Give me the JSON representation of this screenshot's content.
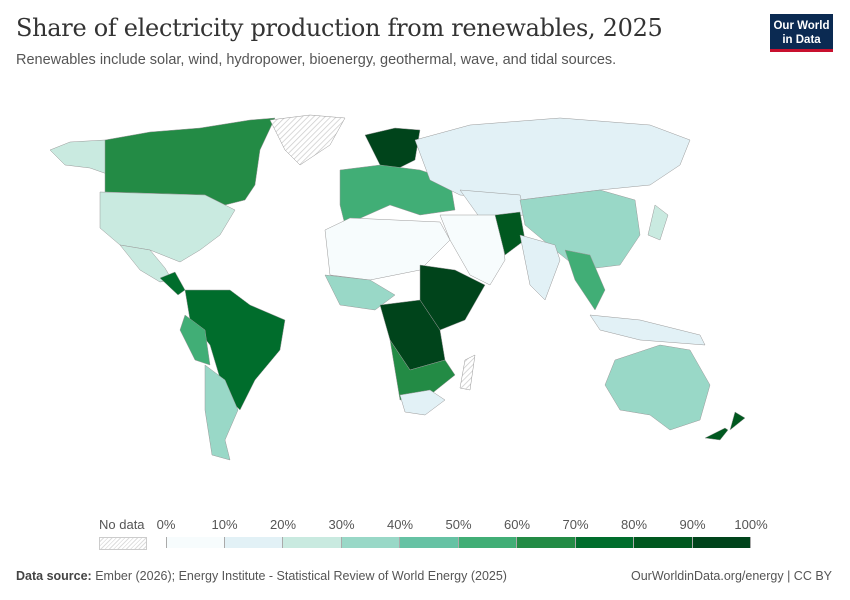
{
  "header": {
    "title": "Share of electricity production from renewables, 2025",
    "subtitle": "Renewables include solar, wind, hydropower, bioenergy, geothermal, wave, and tidal sources."
  },
  "logo": {
    "line1": "Our World",
    "line2": "in Data"
  },
  "legend": {
    "no_data_label": "No data",
    "ticks": [
      "0%",
      "10%",
      "20%",
      "30%",
      "40%",
      "50%",
      "60%",
      "70%",
      "80%",
      "90%",
      "100%"
    ],
    "colors": [
      "#f7fcfd",
      "#e2f1f6",
      "#c9eae0",
      "#99d8c7",
      "#66c2a4",
      "#41ae76",
      "#238b45",
      "#006d2c",
      "#00581f",
      "#00441b"
    ]
  },
  "footer": {
    "source_label": "Data source:",
    "source": "Ember (2026); Energy Institute - Statistical Review of World Energy (2025)",
    "credit": "OurWorldinData.org/energy | CC BY"
  }
}
